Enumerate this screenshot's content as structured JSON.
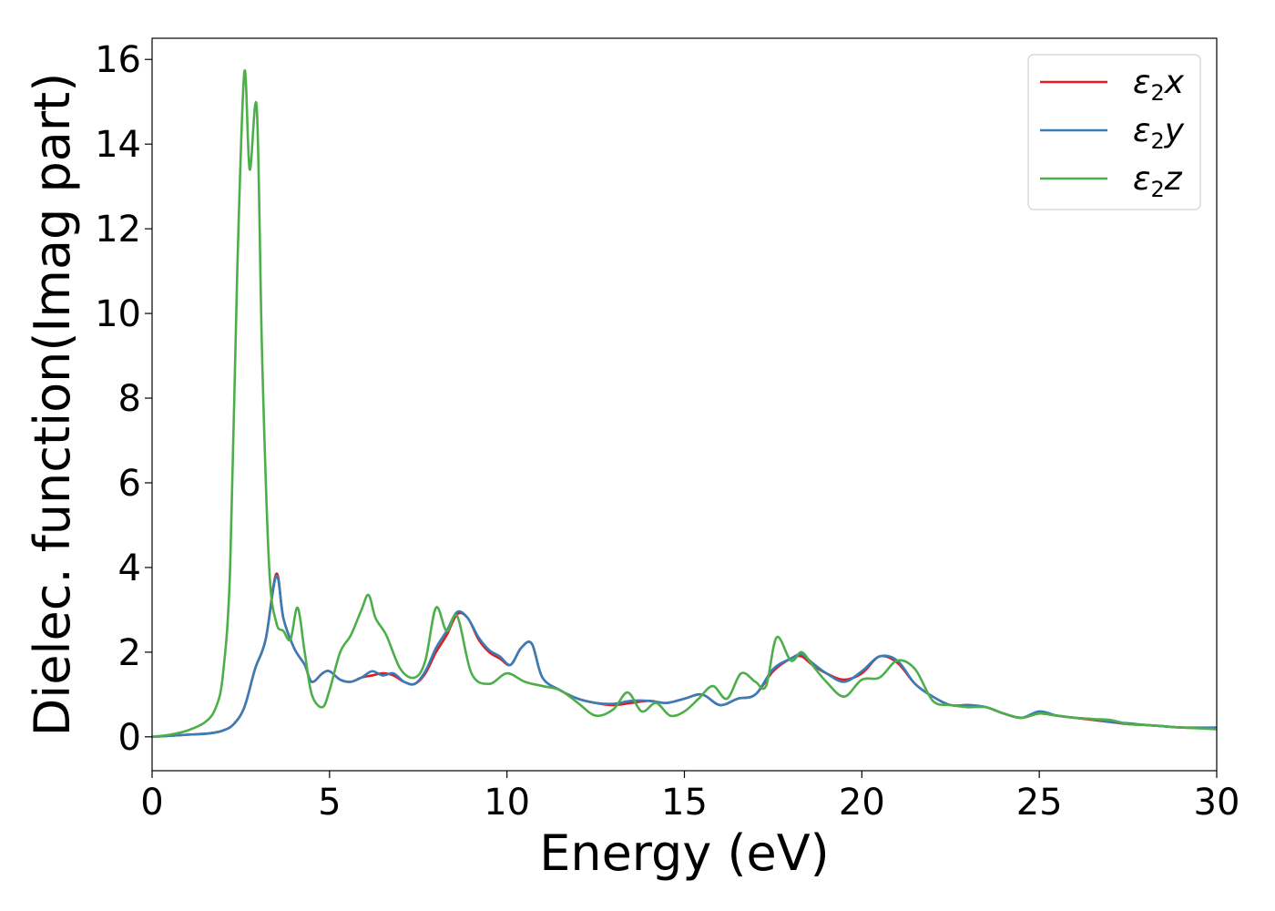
{
  "chart_data": {
    "type": "line",
    "xlabel": "Energy (eV)",
    "ylabel": "Dielec. function(Imag part)",
    "xlim": [
      0,
      30
    ],
    "ylim": [
      -0.8,
      16.5
    ],
    "xticks": [
      0,
      5,
      10,
      15,
      20,
      25,
      30
    ],
    "yticks": [
      0,
      2,
      4,
      6,
      8,
      10,
      12,
      14,
      16
    ],
    "grid": false,
    "legend_position": "top-right",
    "series": [
      {
        "name": "ε2x",
        "legend": {
          "base": "ε",
          "sub": "2",
          "var": "x"
        },
        "color": "#e41a1c",
        "x": [
          0,
          1,
          1.6,
          2.0,
          2.3,
          2.6,
          2.9,
          3.2,
          3.5,
          3.7,
          4.0,
          4.3,
          4.5,
          4.8,
          5.0,
          5.3,
          5.6,
          5.9,
          6.2,
          6.5,
          6.8,
          7.1,
          7.4,
          7.7,
          8.0,
          8.3,
          8.6,
          8.9,
          9.2,
          9.5,
          9.8,
          10.1,
          10.4,
          10.7,
          11.0,
          11.5,
          12.0,
          12.5,
          13.0,
          13.5,
          14.0,
          14.5,
          15.0,
          15.5,
          16.0,
          16.5,
          17.0,
          17.5,
          18.0,
          18.3,
          18.6,
          19.0,
          19.5,
          20.0,
          20.5,
          21.0,
          21.5,
          22.0,
          22.5,
          23.0,
          23.5,
          24.0,
          24.5,
          25.0,
          25.5,
          26.0,
          26.5,
          27.0,
          27.5,
          28.0,
          28.5,
          29.0,
          30.0
        ],
        "y": [
          0.0,
          0.05,
          0.08,
          0.15,
          0.3,
          0.7,
          1.6,
          2.3,
          3.85,
          2.8,
          2.1,
          1.7,
          1.3,
          1.5,
          1.55,
          1.35,
          1.3,
          1.4,
          1.45,
          1.5,
          1.45,
          1.3,
          1.25,
          1.5,
          2.0,
          2.4,
          2.9,
          2.8,
          2.3,
          2.0,
          1.85,
          1.7,
          2.1,
          2.2,
          1.4,
          1.1,
          0.9,
          0.8,
          0.75,
          0.8,
          0.85,
          0.8,
          0.9,
          1.0,
          0.75,
          0.9,
          1.0,
          1.55,
          1.85,
          1.9,
          1.7,
          1.5,
          1.35,
          1.5,
          1.9,
          1.75,
          1.25,
          0.95,
          0.75,
          0.75,
          0.7,
          0.55,
          0.45,
          0.55,
          0.5,
          0.45,
          0.4,
          0.35,
          0.3,
          0.28,
          0.25,
          0.22,
          0.2
        ]
      },
      {
        "name": "ε2y",
        "legend": {
          "base": "ε",
          "sub": "2",
          "var": "y"
        },
        "color": "#377eb8",
        "x": [
          0,
          1,
          1.6,
          2.0,
          2.3,
          2.6,
          2.9,
          3.2,
          3.5,
          3.7,
          4.0,
          4.3,
          4.5,
          4.8,
          5.0,
          5.3,
          5.6,
          5.9,
          6.2,
          6.5,
          6.8,
          7.1,
          7.4,
          7.7,
          8.0,
          8.3,
          8.6,
          8.9,
          9.2,
          9.5,
          9.8,
          10.1,
          10.4,
          10.7,
          11.0,
          11.5,
          12.0,
          12.5,
          13.0,
          13.5,
          14.0,
          14.5,
          15.0,
          15.5,
          16.0,
          16.5,
          17.0,
          17.5,
          18.0,
          18.3,
          18.6,
          19.0,
          19.5,
          20.0,
          20.5,
          21.0,
          21.5,
          22.0,
          22.5,
          23.0,
          23.5,
          24.0,
          24.5,
          25.0,
          25.5,
          26.0,
          26.5,
          27.0,
          27.5,
          28.0,
          28.5,
          29.0,
          30.0
        ],
        "y": [
          0.0,
          0.05,
          0.08,
          0.15,
          0.3,
          0.7,
          1.6,
          2.3,
          3.8,
          2.8,
          2.1,
          1.7,
          1.3,
          1.5,
          1.55,
          1.35,
          1.3,
          1.4,
          1.55,
          1.45,
          1.5,
          1.3,
          1.25,
          1.55,
          2.1,
          2.5,
          2.95,
          2.8,
          2.35,
          2.05,
          1.9,
          1.7,
          2.1,
          2.2,
          1.4,
          1.1,
          0.9,
          0.8,
          0.78,
          0.85,
          0.85,
          0.8,
          0.9,
          1.0,
          0.75,
          0.9,
          1.0,
          1.6,
          1.85,
          1.95,
          1.75,
          1.5,
          1.3,
          1.55,
          1.9,
          1.8,
          1.25,
          0.95,
          0.75,
          0.75,
          0.7,
          0.55,
          0.45,
          0.6,
          0.5,
          0.45,
          0.42,
          0.35,
          0.32,
          0.28,
          0.25,
          0.22,
          0.22
        ]
      },
      {
        "name": "ε2z",
        "legend": {
          "base": "ε",
          "sub": "2",
          "var": "z"
        },
        "color": "#4daf4a",
        "x": [
          0,
          0.5,
          1.0,
          1.5,
          1.8,
          2.0,
          2.2,
          2.4,
          2.6,
          2.75,
          2.95,
          3.1,
          3.3,
          3.5,
          3.7,
          3.9,
          4.1,
          4.3,
          4.5,
          4.8,
          5.0,
          5.3,
          5.6,
          5.9,
          6.1,
          6.3,
          6.6,
          7.0,
          7.4,
          7.7,
          8.0,
          8.3,
          8.6,
          9.0,
          9.5,
          10.0,
          10.5,
          11.0,
          11.5,
          12.0,
          12.5,
          13.0,
          13.4,
          13.8,
          14.2,
          14.6,
          15.0,
          15.4,
          15.8,
          16.2,
          16.6,
          17.0,
          17.3,
          17.6,
          18.0,
          18.3,
          18.6,
          19.0,
          19.5,
          20.0,
          20.5,
          21.0,
          21.5,
          22.0,
          22.5,
          23.0,
          23.5,
          24.0,
          24.5,
          25.0,
          25.5,
          26.0,
          26.5,
          27.0,
          27.5,
          28.0,
          28.5,
          29.0,
          30.0
        ],
        "y": [
          0.0,
          0.05,
          0.15,
          0.35,
          0.7,
          1.5,
          4.0,
          11.0,
          15.7,
          13.4,
          14.85,
          9.0,
          4.0,
          2.7,
          2.5,
          2.3,
          3.05,
          2.0,
          1.0,
          0.7,
          1.1,
          2.0,
          2.4,
          3.0,
          3.35,
          2.8,
          2.4,
          1.6,
          1.4,
          1.8,
          3.05,
          2.5,
          2.85,
          1.5,
          1.25,
          1.5,
          1.3,
          1.2,
          1.1,
          0.8,
          0.5,
          0.65,
          1.05,
          0.6,
          0.8,
          0.5,
          0.6,
          0.9,
          1.2,
          0.9,
          1.5,
          1.3,
          1.2,
          2.35,
          1.8,
          2.0,
          1.7,
          1.3,
          0.95,
          1.35,
          1.4,
          1.8,
          1.6,
          0.85,
          0.75,
          0.7,
          0.7,
          0.55,
          0.45,
          0.55,
          0.5,
          0.45,
          0.42,
          0.4,
          0.3,
          0.28,
          0.25,
          0.22,
          0.18
        ]
      }
    ]
  }
}
